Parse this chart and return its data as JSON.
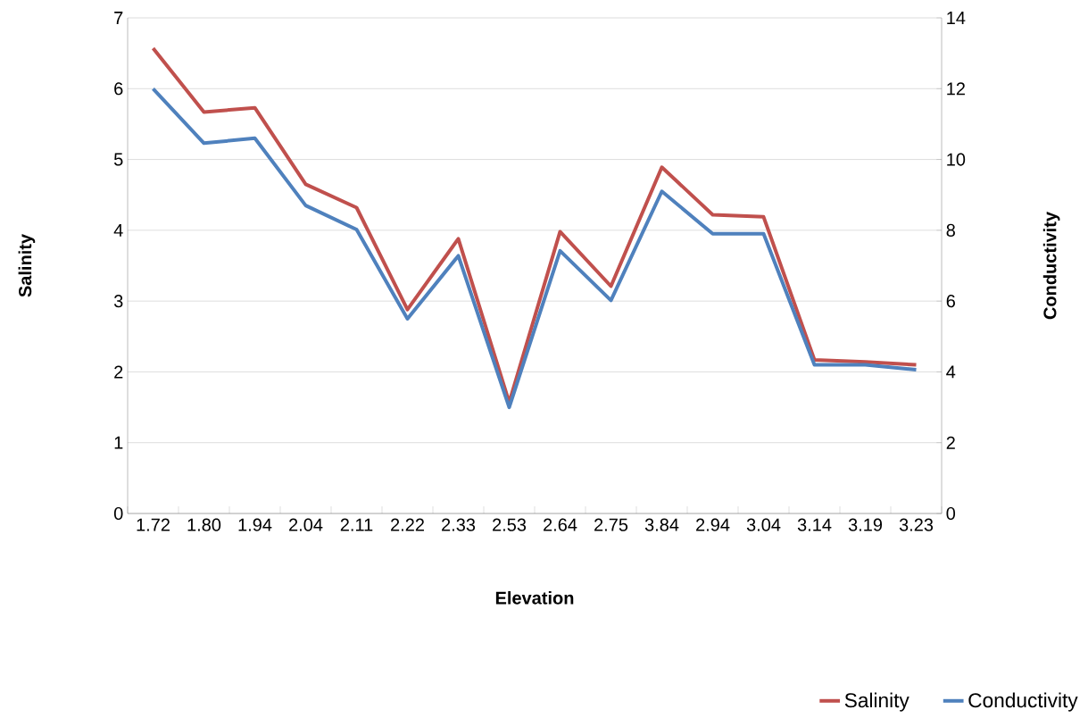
{
  "chart_data": {
    "type": "line",
    "categories": [
      "1.72",
      "1.80",
      "1.94",
      "2.04",
      "2.11",
      "2.22",
      "2.33",
      "2.53",
      "2.64",
      "2.75",
      "3.84",
      "2.94",
      "3.04",
      "3.14",
      "3.19",
      "3.23"
    ],
    "series": [
      {
        "name": "Salinity",
        "color": "#c0504d",
        "values": [
          6.57,
          5.67,
          5.73,
          4.65,
          4.32,
          2.88,
          3.88,
          1.57,
          3.98,
          3.21,
          4.89,
          4.22,
          4.19,
          2.17,
          2.14,
          2.1
        ]
      },
      {
        "name": "Conductivity",
        "color": "#4f81bd",
        "axis": "y2",
        "values": [
          12.0,
          10.46,
          10.6,
          8.7,
          8.02,
          5.5,
          7.28,
          3.0,
          7.42,
          6.02,
          9.1,
          7.9,
          7.9,
          4.2,
          4.2,
          4.06
        ]
      }
    ],
    "xlabel": "Elevation",
    "ylabel": "Salinity",
    "y2label": "Conductivity",
    "ylim": [
      0,
      7
    ],
    "yticks": [
      0,
      1,
      2,
      3,
      4,
      5,
      6,
      7
    ],
    "y2lim": [
      0,
      14
    ],
    "y2ticks": [
      0,
      2,
      4,
      6,
      8,
      10,
      12,
      14
    ],
    "grid": "y",
    "legend": "bottom right"
  }
}
